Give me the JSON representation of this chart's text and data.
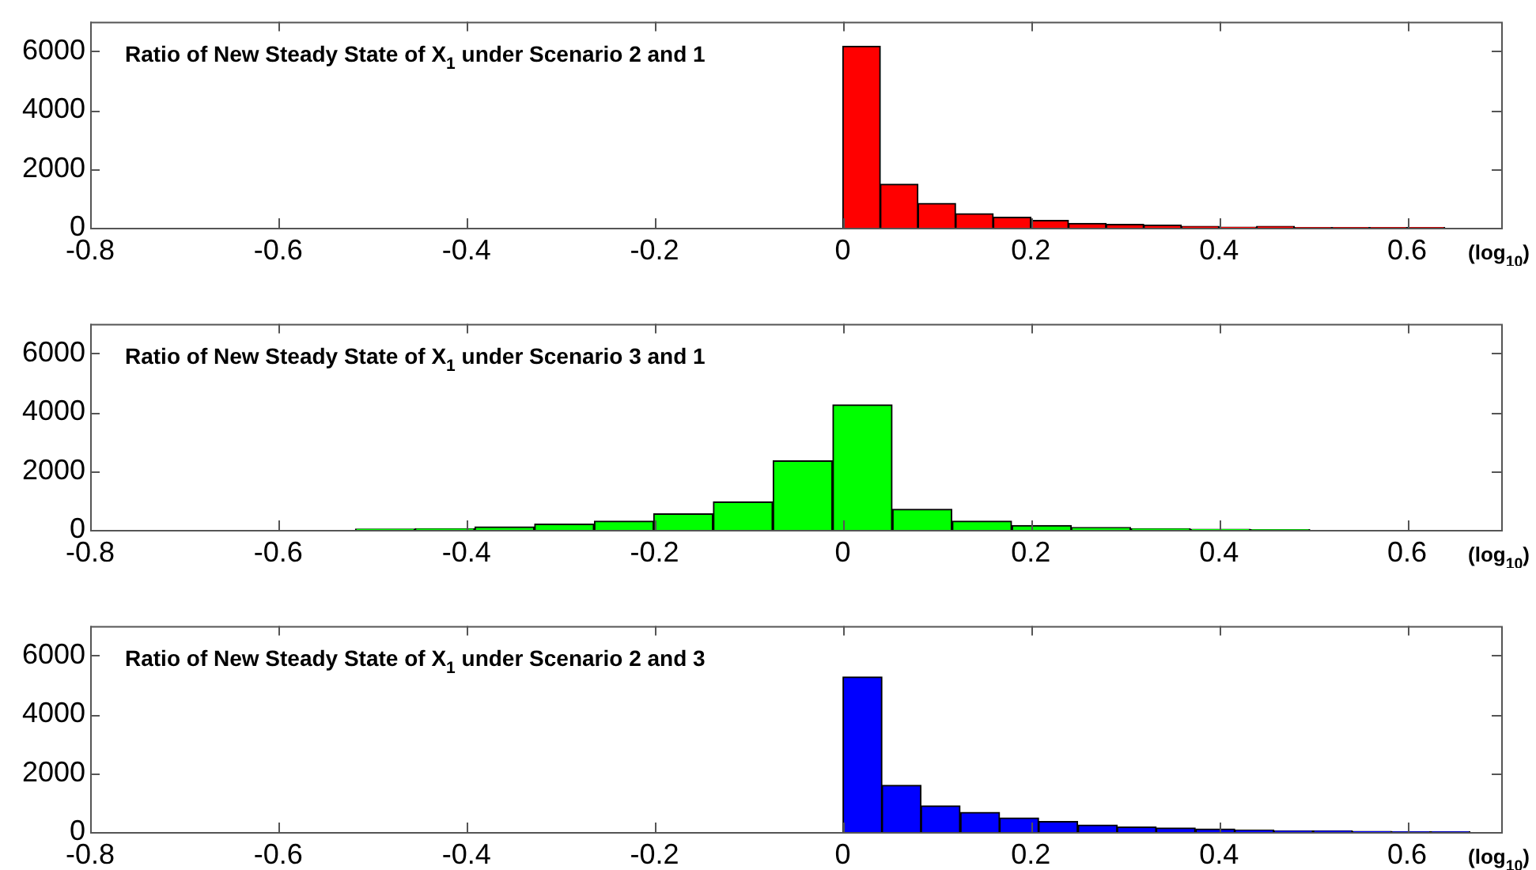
{
  "chart_data": [
    {
      "type": "histogram",
      "title": "Ratio of New Steady State of X$_{1}$ under Scenario 2 and 1",
      "xlabel": "(log$_{10}$)",
      "color": "#ff0000",
      "bins": [
        0,
        0.04,
        0.08,
        0.12,
        0.16,
        0.2,
        0.24,
        0.28,
        0.32,
        0.36,
        0.4,
        0.44,
        0.48,
        0.52,
        0.56,
        0.6,
        0.64
      ],
      "values": [
        6170,
        1480,
        830,
        480,
        360,
        250,
        150,
        120,
        90,
        50,
        20,
        50,
        10,
        10,
        10,
        10
      ],
      "xlim": [
        -0.8,
        0.7
      ],
      "ylim": [
        0,
        7000
      ],
      "xticks": [
        -0.8,
        -0.6,
        -0.4,
        -0.2,
        0,
        0.2,
        0.4,
        0.6
      ],
      "yticks": [
        0,
        2000,
        4000,
        6000
      ],
      "grid": false
    },
    {
      "type": "histogram",
      "title": "Ratio of New Steady State of X$_{1}$ under Scenario 3 and 1",
      "xlabel": "(log$_{10}$)",
      "color": "#00ff00",
      "bins": [
        -0.518,
        -0.455,
        -0.391,
        -0.328,
        -0.264,
        -0.201,
        -0.138,
        -0.074,
        -0.011,
        0.053,
        0.116,
        0.18,
        0.243,
        0.306,
        0.37,
        0.433,
        0.497
      ],
      "values": [
        30,
        40,
        100,
        200,
        300,
        550,
        950,
        2350,
        4250,
        700,
        300,
        150,
        80,
        40,
        20,
        10
      ],
      "xlim": [
        -0.8,
        0.7
      ],
      "ylim": [
        0,
        7000
      ],
      "xticks": [
        -0.8,
        -0.6,
        -0.4,
        -0.2,
        0,
        0.2,
        0.4,
        0.6
      ],
      "yticks": [
        0,
        2000,
        4000,
        6000
      ],
      "grid": false
    },
    {
      "type": "histogram",
      "title": "Ratio of New Steady State of X$_{1}$ under Scenario 2 and 3",
      "xlabel": "(log$_{10}$)",
      "color": "#0000ff",
      "bins": [
        0,
        0.042,
        0.083,
        0.125,
        0.167,
        0.208,
        0.25,
        0.292,
        0.333,
        0.375,
        0.417,
        0.458,
        0.5,
        0.542,
        0.583,
        0.625,
        0.667
      ],
      "values": [
        5270,
        1590,
        890,
        670,
        480,
        360,
        240,
        170,
        140,
        100,
        70,
        40,
        40,
        20,
        10,
        10
      ],
      "xlim": [
        -0.8,
        0.7
      ],
      "ylim": [
        0,
        7000
      ],
      "xticks": [
        -0.8,
        -0.6,
        -0.4,
        -0.2,
        0,
        0.2,
        0.4,
        0.6
      ],
      "yticks": [
        0,
        2000,
        4000,
        6000
      ],
      "grid": false
    }
  ]
}
